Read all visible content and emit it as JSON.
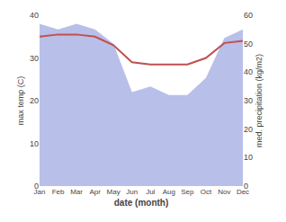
{
  "chart_data": {
    "type": "line",
    "categories": [
      "Jan",
      "Feb",
      "Mar",
      "Apr",
      "May",
      "Jun",
      "Jul",
      "Aug",
      "Sep",
      "Oct",
      "Nov",
      "Dec"
    ],
    "series": [
      {
        "type": "area",
        "axis": "y2",
        "color": "#b8bfe8",
        "values": [
          57,
          55,
          57,
          55,
          50,
          33,
          35,
          32,
          32,
          38,
          52,
          55
        ]
      },
      {
        "type": "line",
        "color": "#c0504d",
        "values": [
          35,
          35.5,
          35.5,
          35,
          33,
          29,
          28.5,
          28.5,
          28.5,
          30,
          33.5,
          34
        ]
      }
    ],
    "xlabel": "date (month)",
    "ylabel": "max temp (C)",
    "y2label": "med. precipitation (kg/m2)",
    "ylim": [
      0,
      40
    ],
    "yticks": [
      0,
      10,
      20,
      30,
      40
    ],
    "y2lim": [
      0,
      60
    ],
    "y2ticks": [
      0,
      10,
      20,
      30,
      40,
      50,
      60
    ],
    "grid": false
  }
}
